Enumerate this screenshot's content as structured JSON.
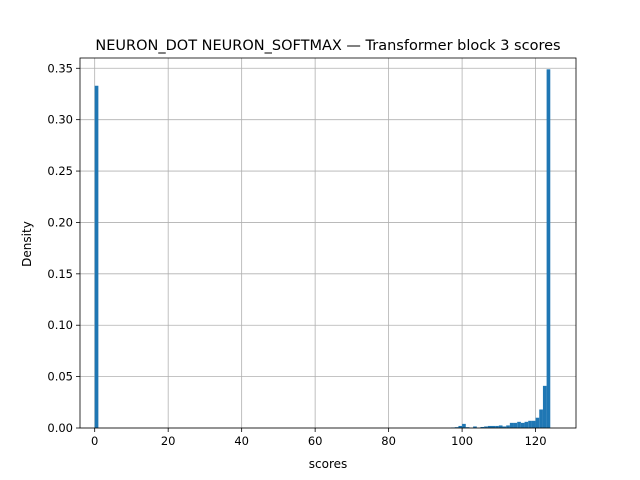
{
  "chart_data": {
    "type": "bar",
    "title": "NEURON_DOT NEURON_SOFTMAX — Transformer block 3 scores",
    "xlabel": "scores",
    "ylabel": "Density",
    "xlim": [
      -4,
      131
    ],
    "ylim": [
      0,
      0.36
    ],
    "xticks": [
      0,
      20,
      40,
      60,
      80,
      100,
      120
    ],
    "yticks": [
      0.0,
      0.05,
      0.1,
      0.15,
      0.2,
      0.25,
      0.3,
      0.35
    ],
    "xtick_labels": [
      "0",
      "20",
      "40",
      "60",
      "80",
      "100",
      "120"
    ],
    "ytick_labels": [
      "0.00",
      "0.05",
      "0.10",
      "0.15",
      "0.20",
      "0.25",
      "0.30",
      "0.35"
    ],
    "grid": true,
    "color": "#1f77b4",
    "bin_width": 1,
    "bins": [
      {
        "x": 0,
        "y": 0.333
      },
      {
        "x": 97,
        "y": 0.0005
      },
      {
        "x": 98,
        "y": 0.0008
      },
      {
        "x": 99,
        "y": 0.002
      },
      {
        "x": 100,
        "y": 0.004
      },
      {
        "x": 101,
        "y": 0.0008
      },
      {
        "x": 103,
        "y": 0.0015
      },
      {
        "x": 105,
        "y": 0.001
      },
      {
        "x": 106,
        "y": 0.0015
      },
      {
        "x": 107,
        "y": 0.002
      },
      {
        "x": 108,
        "y": 0.002
      },
      {
        "x": 109,
        "y": 0.002
      },
      {
        "x": 110,
        "y": 0.0025
      },
      {
        "x": 111,
        "y": 0.0015
      },
      {
        "x": 112,
        "y": 0.0025
      },
      {
        "x": 113,
        "y": 0.005
      },
      {
        "x": 114,
        "y": 0.005
      },
      {
        "x": 115,
        "y": 0.006
      },
      {
        "x": 116,
        "y": 0.005
      },
      {
        "x": 117,
        "y": 0.006
      },
      {
        "x": 118,
        "y": 0.007
      },
      {
        "x": 119,
        "y": 0.007
      },
      {
        "x": 120,
        "y": 0.01
      },
      {
        "x": 121,
        "y": 0.018
      },
      {
        "x": 122,
        "y": 0.041
      },
      {
        "x": 123,
        "y": 0.349
      }
    ]
  }
}
